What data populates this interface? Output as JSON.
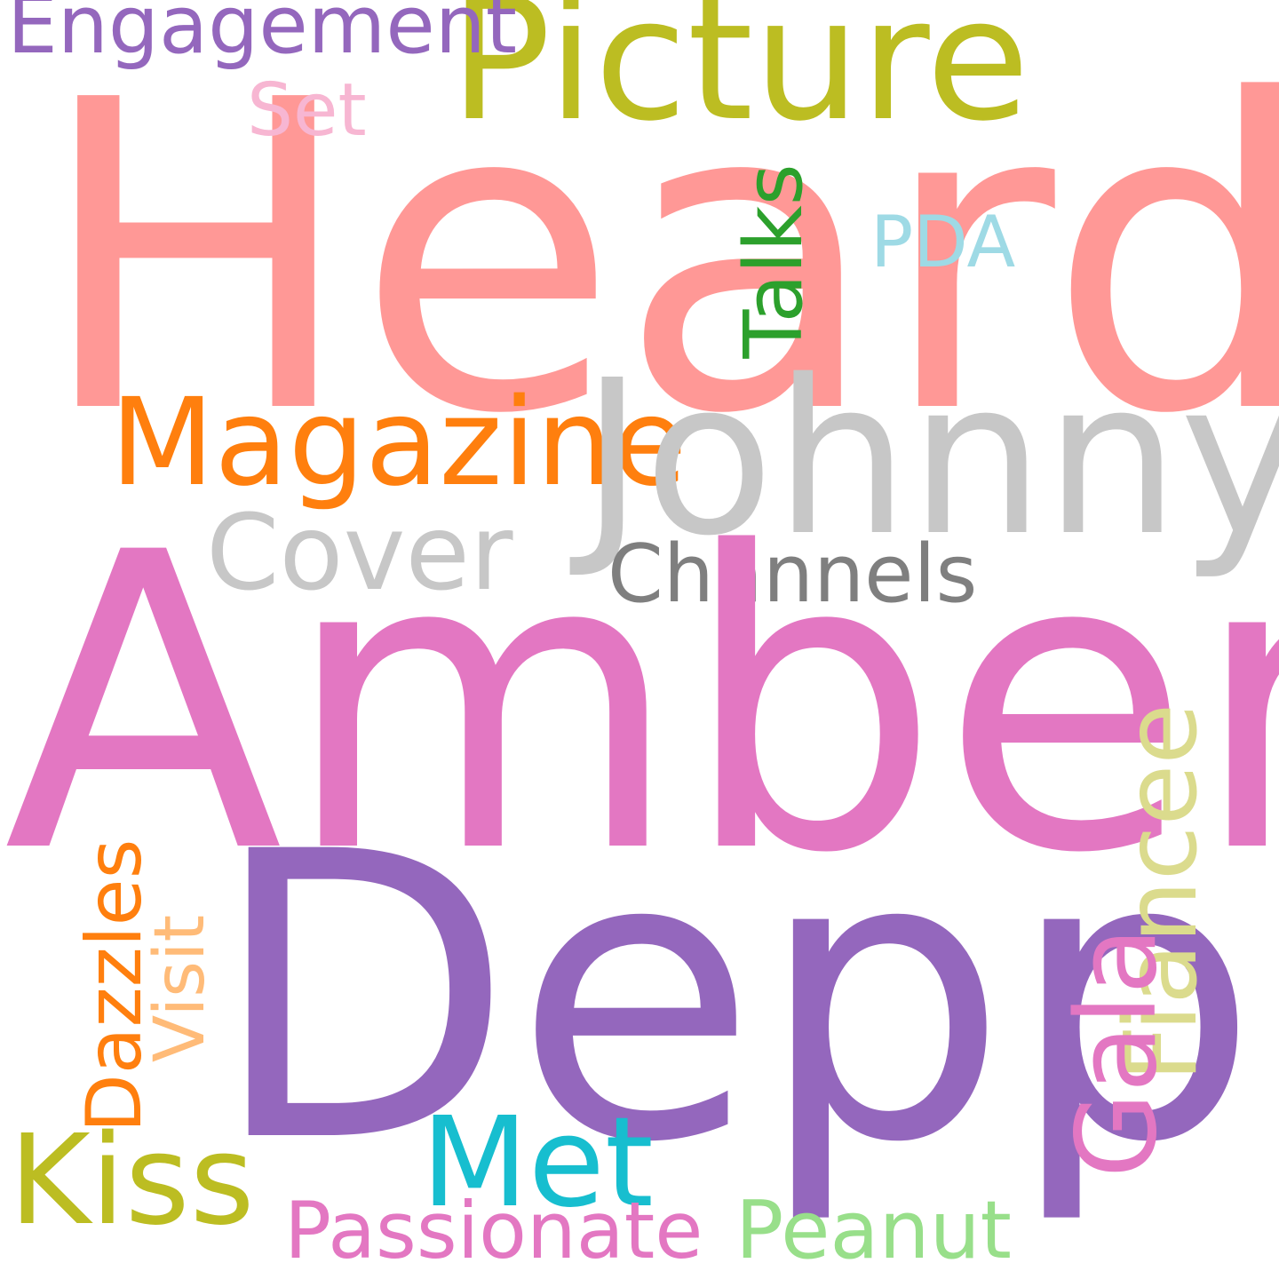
{
  "words": {
    "heard": {
      "text": "Heard",
      "color": "#ff9896"
    },
    "amber": {
      "text": "Amber",
      "color": "#e377c2"
    },
    "depp": {
      "text": "Depp",
      "color": "#9467bd"
    },
    "johnny": {
      "text": "Johnny",
      "color": "#c7c7c7"
    },
    "picture": {
      "text": "Picture",
      "color": "#bcbd22"
    },
    "magazine": {
      "text": "Magazine",
      "color": "#ff7f0e"
    },
    "cover": {
      "text": "Cover",
      "color": "#c7c7c7"
    },
    "kiss": {
      "text": "Kiss",
      "color": "#bcbd22"
    },
    "met": {
      "text": "Met",
      "color": "#17becf"
    },
    "engagement": {
      "text": "Engagement",
      "color": "#9467bd"
    },
    "channels": {
      "text": "Channels",
      "color": "#7f7f7f"
    },
    "passionate": {
      "text": "Passionate",
      "color": "#e377c2"
    },
    "peanut": {
      "text": "Peanut",
      "color": "#98df8a"
    },
    "set": {
      "text": "Set",
      "color": "#f7b6d2"
    },
    "pda": {
      "text": "PDA",
      "color": "#9edae5"
    },
    "talks": {
      "text": "Talks",
      "color": "#2ca02c"
    },
    "fiancee": {
      "text": "Fiancee",
      "color": "#dbdb8d"
    },
    "gala": {
      "text": "Gala",
      "color": "#e377c2"
    },
    "dazzles": {
      "text": "Dazzles",
      "color": "#ff7f0e"
    },
    "visit": {
      "text": "Visit",
      "color": "#ffbb78"
    }
  }
}
